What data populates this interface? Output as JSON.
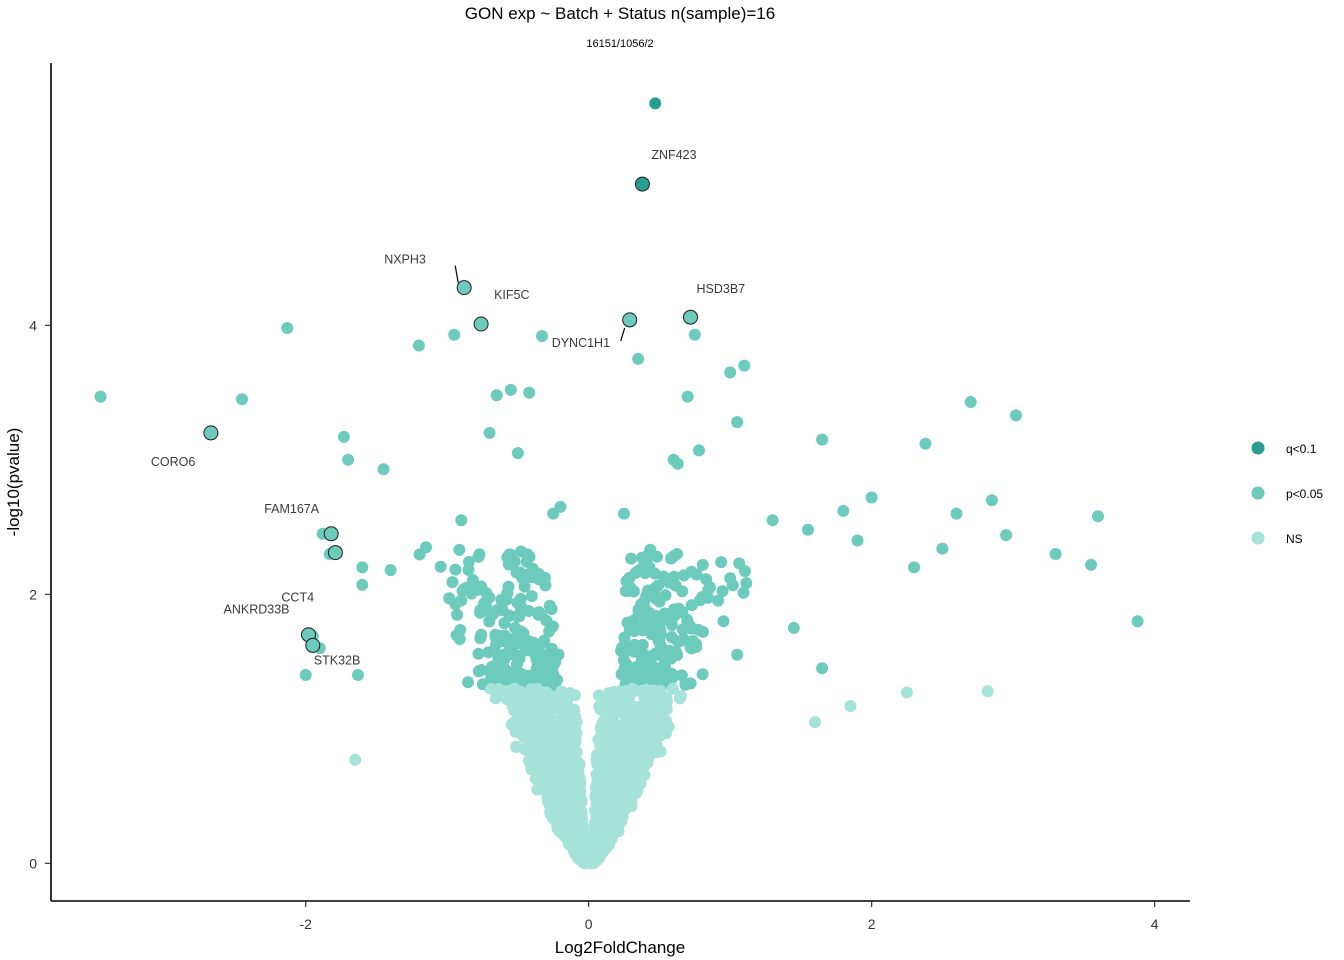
{
  "chart_data": {
    "type": "scatter",
    "title": "GON exp ~ Batch + Status n(sample)=16",
    "subtitle": "16151/1056/2",
    "xlabel": "Log2FoldChange",
    "ylabel": "-log10(pvalue)",
    "xlim": [
      -3.8,
      4.25
    ],
    "ylim": [
      -0.28,
      5.95
    ],
    "x_ticks": [
      -2,
      0,
      2,
      4
    ],
    "y_ticks": [
      0,
      2,
      4
    ],
    "grid": false,
    "legend_position": "right",
    "pvalue_threshold_neglog10": 1.3,
    "colors": {
      "q<0.1": "#2a9d91",
      "p<0.05": "#6ccbbd",
      "NS": "#a5e3d8"
    },
    "series": [
      {
        "name": "q<0.1",
        "color": "#2a9d91",
        "x": [
          0.47,
          0.38
        ],
        "y": [
          5.65,
          5.05
        ]
      },
      {
        "name": "p<0.05",
        "color": "#6ccbbd",
        "x": [
          -3.45,
          -2.13,
          -2.45,
          -2.68,
          -1.2,
          -0.95,
          -0.33,
          -0.42,
          -0.55,
          -0.65,
          -0.7,
          -0.5,
          -1.73,
          -1.7,
          -1.45,
          -1.88,
          -1.83,
          -1.95,
          -1.6,
          -1.9,
          -1.4,
          -1.6,
          0.75,
          1.0,
          1.1,
          1.05,
          0.7,
          0.6,
          0.63,
          0.78,
          1.65,
          2.0,
          2.38,
          2.7,
          3.02,
          3.88,
          3.6,
          2.95,
          2.5,
          1.8,
          1.3,
          1.55,
          1.9,
          2.3,
          2.6,
          2.85,
          3.3,
          3.55,
          1.05,
          1.45,
          1.65,
          0.35,
          -0.25,
          -0.9,
          -1.15,
          -0.2,
          0.25,
          -2.0,
          -1.63
        ],
        "y": [
          3.47,
          3.98,
          3.45,
          3.2,
          3.85,
          3.93,
          3.92,
          3.5,
          3.52,
          3.48,
          3.2,
          3.05,
          3.17,
          3.0,
          2.93,
          2.45,
          2.3,
          1.69,
          2.2,
          1.6,
          2.18,
          2.07,
          3.93,
          3.65,
          3.7,
          3.28,
          3.47,
          3.0,
          2.97,
          3.07,
          3.15,
          2.72,
          3.12,
          3.43,
          3.33,
          1.8,
          2.58,
          2.44,
          2.34,
          2.62,
          2.55,
          2.48,
          2.4,
          2.2,
          2.6,
          2.7,
          2.3,
          2.22,
          1.55,
          1.75,
          1.45,
          3.75,
          2.6,
          2.55,
          2.35,
          2.65,
          2.6,
          1.4,
          1.4
        ]
      },
      {
        "name": "NS",
        "color": "#a5e3d8",
        "x": [
          2.25,
          2.82,
          -1.65,
          1.85,
          1.6
        ],
        "y": [
          1.27,
          1.28,
          0.77,
          1.17,
          1.05
        ]
      }
    ],
    "labeled_genes": [
      {
        "gene": "ZNF423",
        "x": 0.38,
        "y": 5.05,
        "group": "q<0.1"
      },
      {
        "gene": "NXPH3",
        "x": -0.88,
        "y": 4.28,
        "group": "p<0.05"
      },
      {
        "gene": "KIF5C",
        "x": -0.76,
        "y": 4.01,
        "group": "p<0.05"
      },
      {
        "gene": "DYNC1H1",
        "x": 0.29,
        "y": 4.04,
        "group": "p<0.05"
      },
      {
        "gene": "HSD3B7",
        "x": 0.72,
        "y": 4.06,
        "group": "p<0.05"
      },
      {
        "gene": "CORO6",
        "x": -2.67,
        "y": 3.2,
        "group": "p<0.05"
      },
      {
        "gene": "FAM167A",
        "x": -1.82,
        "y": 2.45,
        "group": "p<0.05"
      },
      {
        "gene": "CCT4",
        "x": -1.79,
        "y": 2.31,
        "group": "p<0.05"
      },
      {
        "gene": "ANKRD33B",
        "x": -1.98,
        "y": 1.7,
        "group": "p<0.05"
      },
      {
        "gene": "STK32B",
        "x": -1.95,
        "y": 1.62,
        "group": "p<0.05"
      }
    ]
  }
}
